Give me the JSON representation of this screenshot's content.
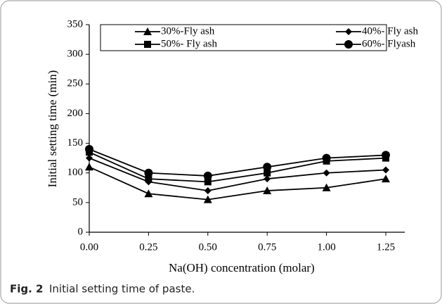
{
  "chart_data": {
    "type": "line",
    "x": [
      0,
      0.25,
      0.5,
      0.75,
      1.0,
      1.25
    ],
    "xlabel": "Na(OH) concentration (molar)",
    "ylabel": "Initial setting time (min)",
    "xlim": [
      0,
      1.33
    ],
    "ylim": [
      0,
      350
    ],
    "xticks": [
      {
        "value": 0,
        "label": "0.00"
      },
      {
        "value": 0.25,
        "label": "0.25"
      },
      {
        "value": 0.5,
        "label": "0.50"
      },
      {
        "value": 0.75,
        "label": "0.75"
      },
      {
        "value": 1.0,
        "label": "1.00"
      },
      {
        "value": 1.25,
        "label": "1.25"
      }
    ],
    "yticks": [
      0,
      50,
      100,
      150,
      200,
      250,
      300,
      350
    ],
    "series": [
      {
        "name": "30%-Fly ash",
        "color": "#000000",
        "marker": "triangle",
        "values": [
          110,
          65,
          55,
          70,
          75,
          90
        ]
      },
      {
        "name": "40%- Fly ash",
        "color": "#000000",
        "marker": "diamond",
        "values": [
          125,
          85,
          70,
          90,
          100,
          105
        ]
      },
      {
        "name": "50%- Fly ash",
        "color": "#000000",
        "marker": "square",
        "values": [
          135,
          90,
          85,
          100,
          120,
          125
        ]
      },
      {
        "name": "60%- Flyash",
        "color": "#000000",
        "marker": "circle",
        "values": [
          140,
          100,
          95,
          110,
          125,
          130
        ]
      }
    ]
  },
  "caption": {
    "label": "Fig. 2",
    "text": "Initial setting time of paste."
  }
}
